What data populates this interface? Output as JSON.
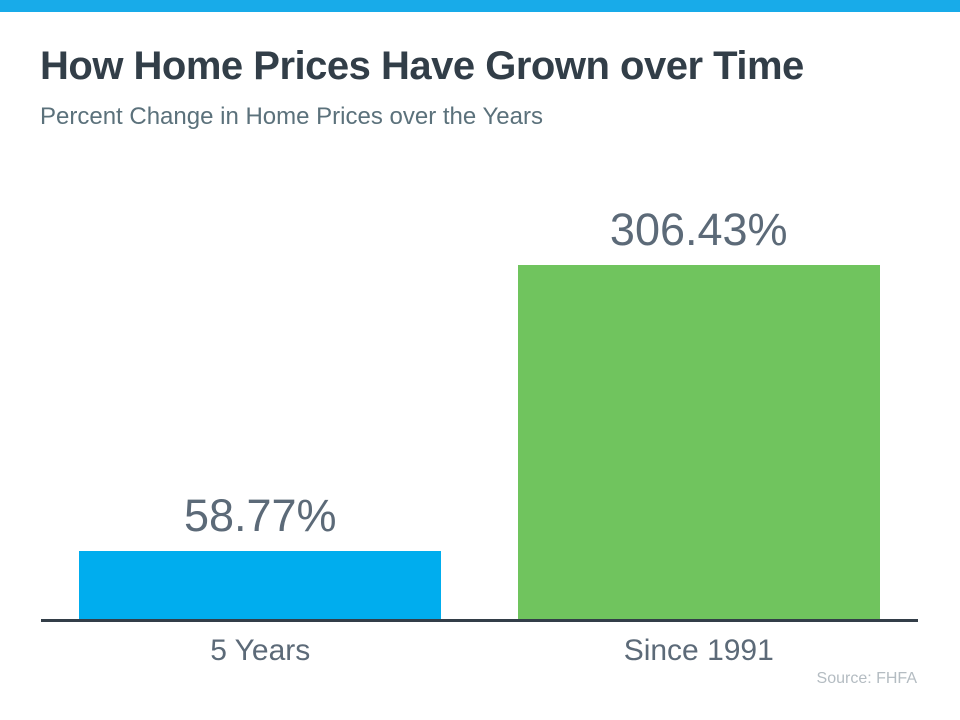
{
  "chart_data": {
    "type": "bar",
    "title": "How Home Prices Have Grown over Time",
    "subtitle": "Percent Change in Home Prices over the Years",
    "categories": [
      "5 Years",
      "Since 1991"
    ],
    "values": [
      58.77,
      306.43
    ],
    "bars": [
      {
        "category": "5 Years",
        "value": 58.77,
        "value_label": "58.77%",
        "color": "#00adee"
      },
      {
        "category": "Since 1991",
        "value": 306.43,
        "value_label": "306.43%",
        "color": "#70c45e"
      }
    ],
    "xlabel": "",
    "ylabel": "",
    "ylim": [
      0,
      306.43
    ],
    "grid": false,
    "legend": false,
    "value_labels_position": "above-bars",
    "source": "Source: FHFA"
  },
  "colors": {
    "accent_strip": "#18abe9",
    "title_text": "#323e48",
    "subtitle_text": "#5b717b",
    "label_text": "#5c6a78",
    "axis_line": "#333e48",
    "source_text": "#b4bcc2",
    "background": "#ffffff"
  }
}
